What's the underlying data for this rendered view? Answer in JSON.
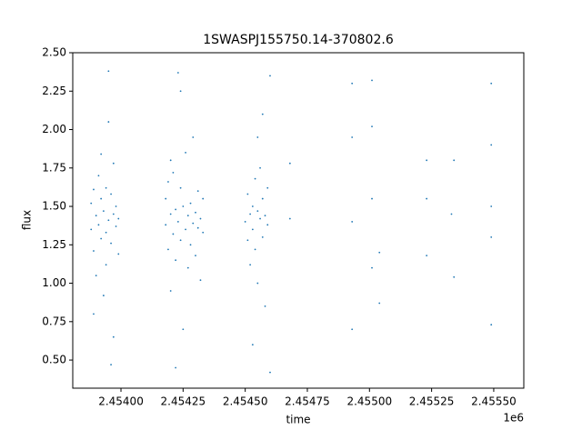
{
  "chart_data": {
    "type": "scatter",
    "title": "1SWASPJ155750.14-370802.6",
    "x_label": "time",
    "y_label": "flux",
    "x_offset_label": "1e6",
    "color": "#1f77b4",
    "x": [
      2.45388,
      2.45388,
      2.45389,
      2.45389,
      2.4539,
      2.4539,
      2.45391,
      2.45391,
      2.45392,
      2.45392,
      2.45393,
      2.45393,
      2.45394,
      2.45394,
      2.45395,
      2.45395,
      2.45396,
      2.45396,
      2.45397,
      2.45397,
      2.45398,
      2.45398,
      2.45399,
      2.45399,
      2.45395,
      2.45396,
      2.45389,
      2.45392,
      2.45394,
      2.45397,
      2.45418,
      2.45418,
      2.45419,
      2.45419,
      2.4542,
      2.4542,
      2.45421,
      2.45421,
      2.45422,
      2.45422,
      2.45423,
      2.45423,
      2.45424,
      2.45424,
      2.45425,
      2.45425,
      2.45426,
      2.45426,
      2.45427,
      2.45427,
      2.45428,
      2.45428,
      2.45429,
      2.45429,
      2.4543,
      2.4543,
      2.45431,
      2.45431,
      2.45432,
      2.45432,
      2.45433,
      2.45433,
      2.45422,
      2.45424,
      2.4542,
      2.4545,
      2.45451,
      2.45451,
      2.45452,
      2.45452,
      2.45453,
      2.45453,
      2.45454,
      2.45454,
      2.45455,
      2.45455,
      2.45456,
      2.45456,
      2.45457,
      2.45457,
      2.45458,
      2.45458,
      2.45459,
      2.45459,
      2.4546,
      2.4546,
      2.45455,
      2.45453,
      2.45457,
      2.45468,
      2.45468,
      2.45493,
      2.45493,
      2.45493,
      2.45493,
      2.45501,
      2.45501,
      2.45501,
      2.45501,
      2.45504,
      2.45504,
      2.45523,
      2.45523,
      2.45523,
      2.45533,
      2.45534,
      2.45534,
      2.45549,
      2.45549,
      2.45549,
      2.45549,
      2.45549
    ],
    "y": [
      1.35,
      1.52,
      1.21,
      1.61,
      1.44,
      1.05,
      1.38,
      1.7,
      1.29,
      1.55,
      1.47,
      0.92,
      1.33,
      1.62,
      1.41,
      2.05,
      1.26,
      1.58,
      1.45,
      0.65,
      1.37,
      1.5,
      1.42,
      1.19,
      2.38,
      0.47,
      0.8,
      1.84,
      1.12,
      1.78,
      1.38,
      1.55,
      1.22,
      1.66,
      1.45,
      0.95,
      1.32,
      1.72,
      1.48,
      1.15,
      1.4,
      2.37,
      1.28,
      1.62,
      1.5,
      0.7,
      1.35,
      1.85,
      1.44,
      1.1,
      1.52,
      1.25,
      1.39,
      1.95,
      1.46,
      1.18,
      1.36,
      1.6,
      1.42,
      1.02,
      1.33,
      1.55,
      0.45,
      2.25,
      1.8,
      1.4,
      1.28,
      1.58,
      1.45,
      1.12,
      1.5,
      1.35,
      1.68,
      1.22,
      1.47,
      1.0,
      1.42,
      1.75,
      1.3,
      1.55,
      1.44,
      0.85,
      1.38,
      1.62,
      2.35,
      0.42,
      1.95,
      0.6,
      2.1,
      1.42,
      1.78,
      2.3,
      1.4,
      0.7,
      1.95,
      2.32,
      1.55,
      1.1,
      2.02,
      0.87,
      1.2,
      1.8,
      1.55,
      1.18,
      1.45,
      1.8,
      1.04,
      2.3,
      1.5,
      1.3,
      0.73,
      1.9
    ],
    "xlim": [
      2.453806,
      2.455621
    ],
    "ylim": [
      0.317,
      2.5
    ],
    "xticks": [
      {
        "value": 2.454,
        "label": "2.45400"
      },
      {
        "value": 2.45425,
        "label": "2.45425"
      },
      {
        "value": 2.4545,
        "label": "2.45450"
      },
      {
        "value": 2.45475,
        "label": "2.45475"
      },
      {
        "value": 2.455,
        "label": "2.45500"
      },
      {
        "value": 2.45525,
        "label": "2.45525"
      },
      {
        "value": 2.4555,
        "label": "2.45550"
      }
    ],
    "yticks": [
      {
        "value": 0.5,
        "label": "0.50"
      },
      {
        "value": 0.75,
        "label": "0.75"
      },
      {
        "value": 1.0,
        "label": "1.00"
      },
      {
        "value": 1.25,
        "label": "1.25"
      },
      {
        "value": 1.5,
        "label": "1.50"
      },
      {
        "value": 1.75,
        "label": "1.75"
      },
      {
        "value": 2.0,
        "label": "2.00"
      },
      {
        "value": 2.25,
        "label": "2.25"
      },
      {
        "value": 2.5,
        "label": "2.50"
      }
    ]
  }
}
